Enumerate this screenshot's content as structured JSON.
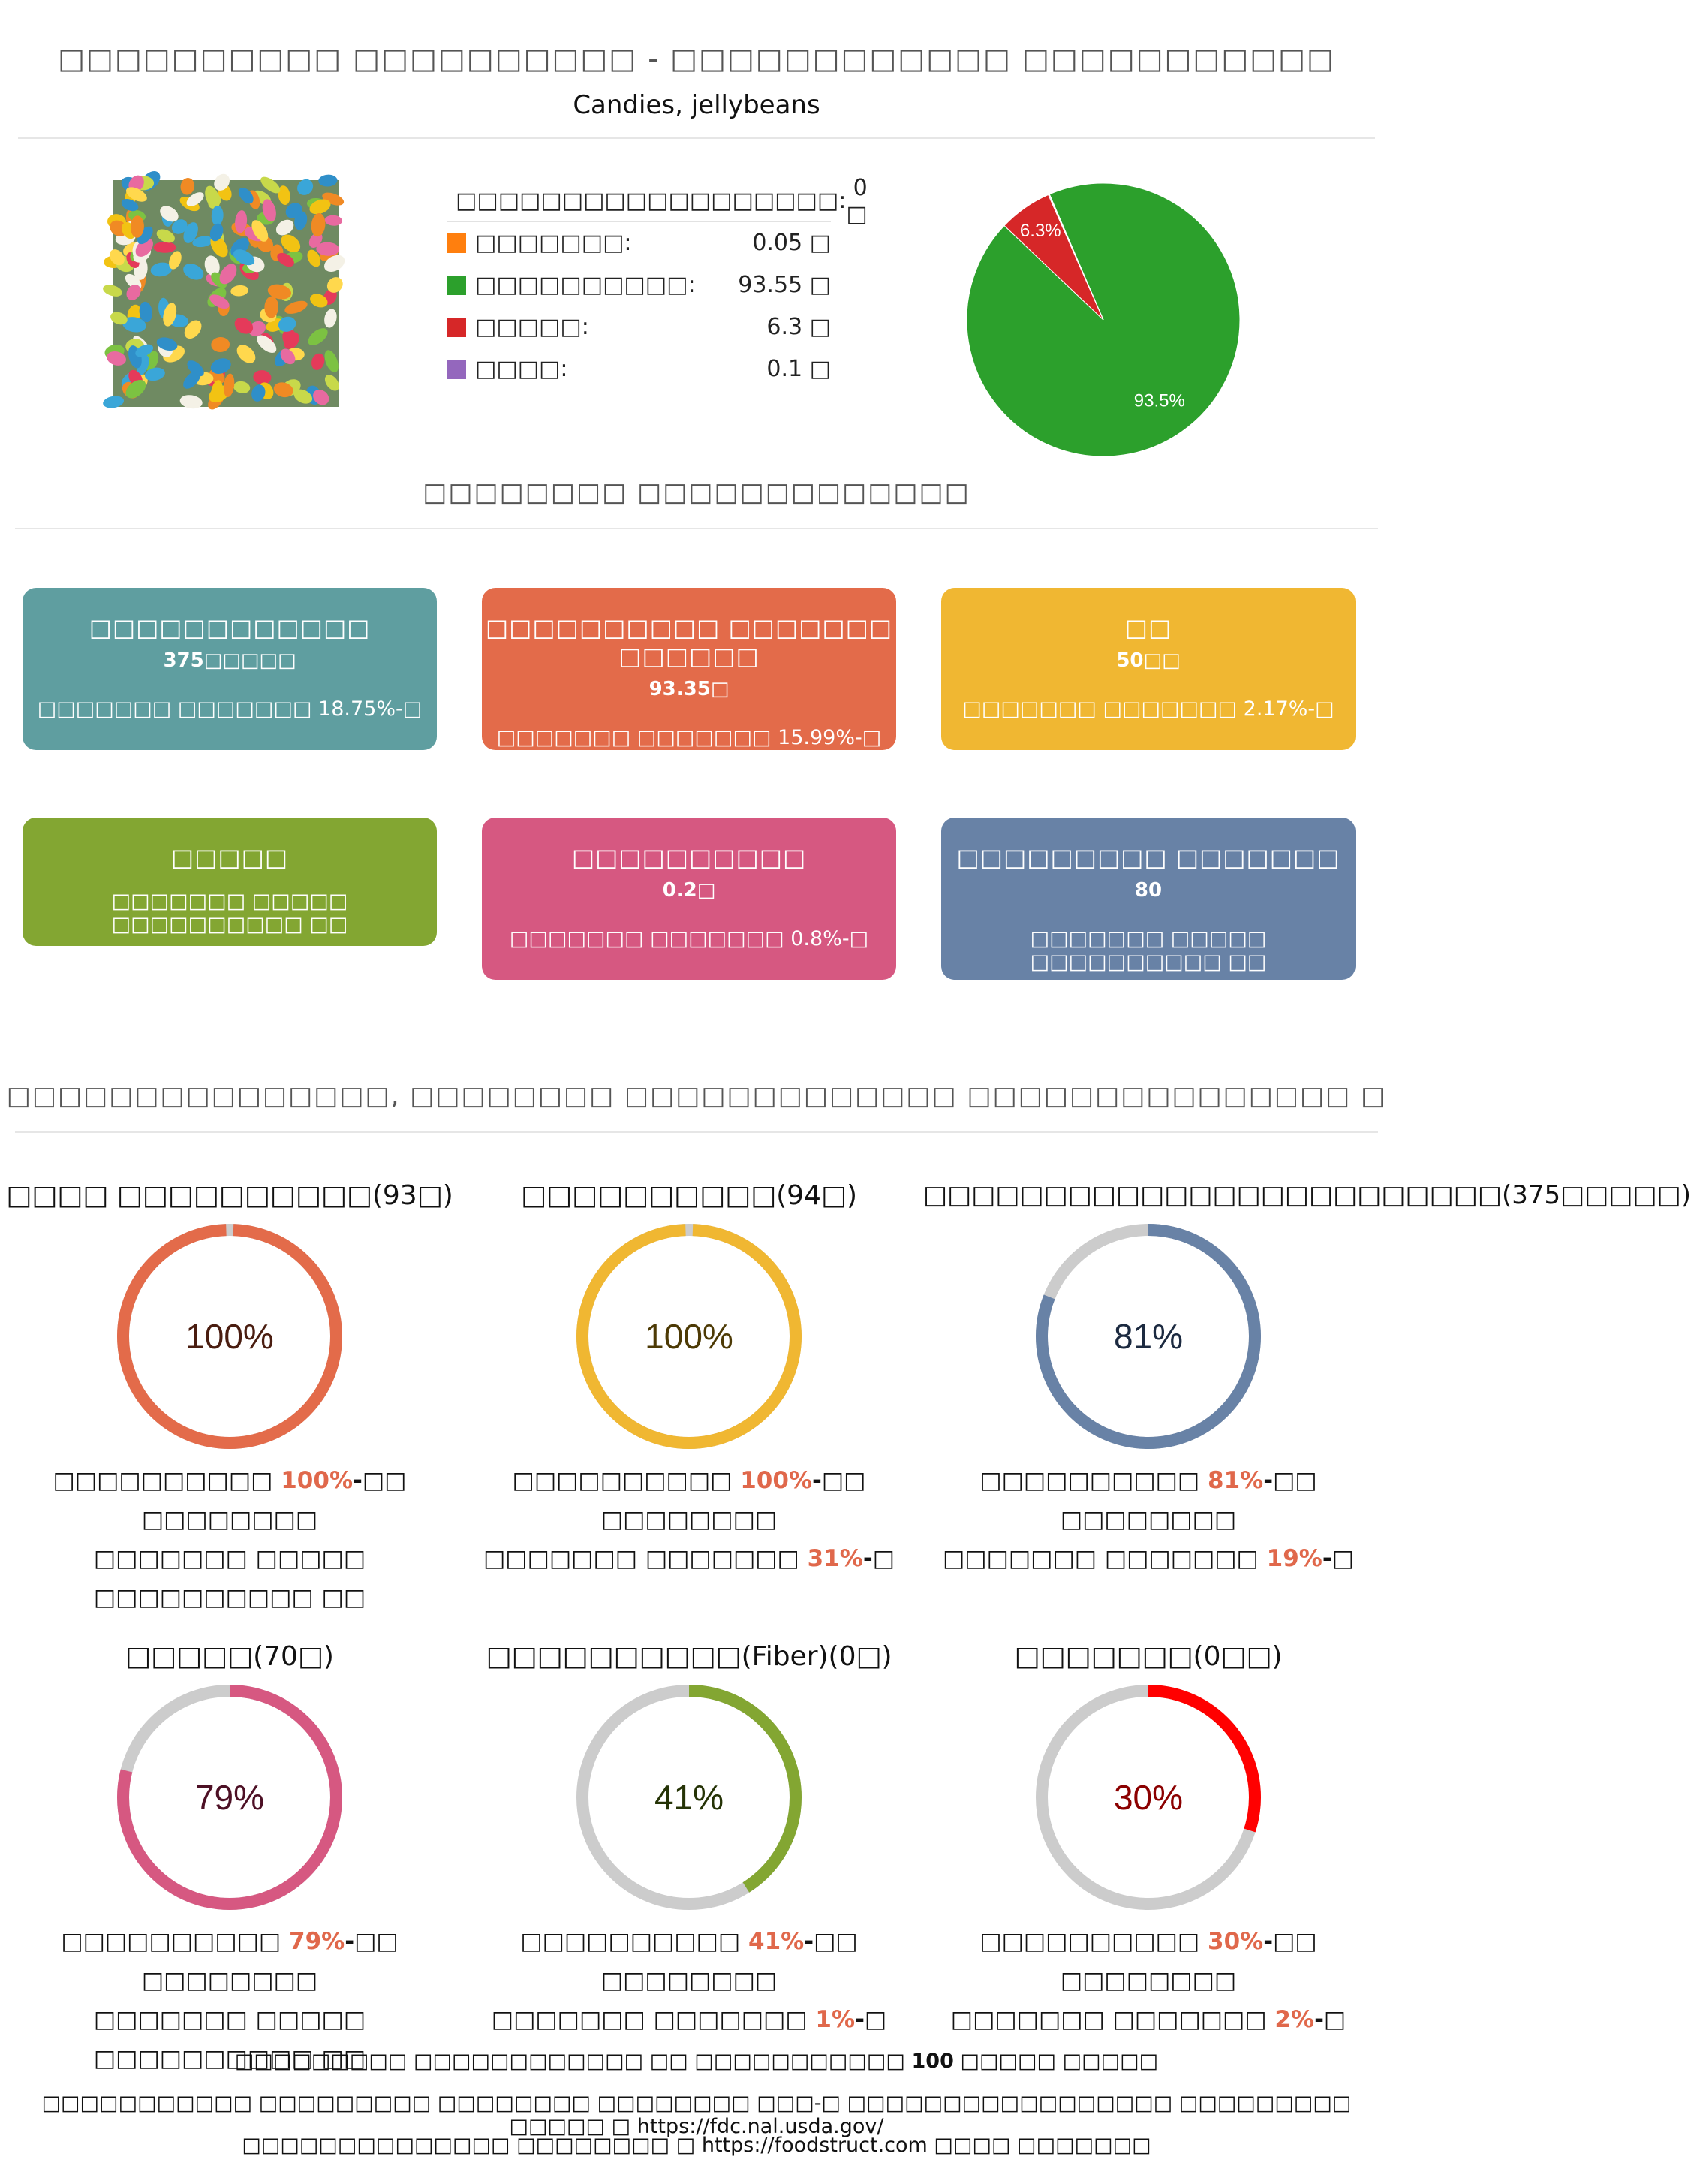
{
  "header": {
    "title": "□□□□□□□□□□ □□□□□□□□□□ - □□□□□□□□□□□□ □□□□□□□□□□□",
    "subtitle": "Candies, jellybeans"
  },
  "image": {
    "alt": "jellybeans-photo"
  },
  "legend": [
    {
      "label": "□□□□□□□□□□□□□□□□□□:",
      "value": "0 □",
      "color": "#1f77b4"
    },
    {
      "label": "□□□□□□□:",
      "value": "0.05 □",
      "color": "#ff7f0e"
    },
    {
      "label": "□□□□□□□□□□:",
      "value": "93.55 □",
      "color": "#2ca02c"
    },
    {
      "label": "□□□□□:",
      "value": "6.3 □",
      "color": "#d62728"
    },
    {
      "label": "□□□□:",
      "value": "0.1 □",
      "color": "#9467bd"
    }
  ],
  "chart_data": {
    "type": "pie",
    "slices": [
      {
        "label": "93.5%",
        "value": 93.55,
        "color": "#2ca02c"
      },
      {
        "label": "6.3%",
        "value": 6.3,
        "color": "#d62728"
      },
      {
        "label": "",
        "value": 0.1,
        "color": "#9467bd"
      },
      {
        "label": "",
        "value": 0.05,
        "color": "#ff7f0e"
      }
    ]
  },
  "sections": {
    "cards_title": "□□□□□□□□ □□□□□□□□□□□□□",
    "rings_title": "□□□□□□□□□□□□□□□, □□□□□□□□ □□□□□□□□□□□□□ □□□□□□□□□□□□□□□ □"
  },
  "cards": [
    {
      "name": "□□□□□□□□□□□□",
      "value": "375□□□□□",
      "note": "□□□□□□□ □□□□□□□ 18.75%-□",
      "color": "#5f9ea0"
    },
    {
      "name": "□□□□□□□□□□ □□□□□□□ □□□□□□",
      "value": "93.35□",
      "note": "□□□□□□□ □□□□□□□ 15.99%-□",
      "color": "#e36b4a"
    },
    {
      "name": "□□",
      "value": "50□□",
      "note": "□□□□□□□ □□□□□□□ 2.17%-□",
      "color": "#f0b732"
    },
    {
      "name": "□□□□□",
      "value": "",
      "note": "□□□□□□□ □□□□□ □□□□□□□□□□ □□",
      "color": "#83a632"
    },
    {
      "name": "□□□□□□□□□□",
      "value": "0.2□",
      "note": "□□□□□□□ □□□□□□□ 0.8%-□",
      "color": "#d65881"
    },
    {
      "name": "□□□□□□□□□ □□□□□□□",
      "value": "80",
      "note": "□□□□□□□ □□□□□ □□□□□□□□□□ □□",
      "color": "#6882a6"
    }
  ],
  "rings": [
    {
      "title": "□□□□ □□□□□□□□□□(93□)",
      "percent": 100,
      "label": "100%",
      "color": "#e36b4a",
      "text_color": "#4a1d10",
      "desc1_pre": "□□□□□□□□□□ ",
      "desc1_hl": "100%",
      "desc1_post": "-□□ □□□□□□□□",
      "desc2_pre": "□□□□□□□ □□□□□ □□□□□□□□□□ □□",
      "desc2_hl": "",
      "desc2_post": ""
    },
    {
      "title": "□□□□□□□□□□(94□)",
      "percent": 100,
      "label": "100%",
      "color": "#f0b732",
      "text_color": "#4d3a05",
      "desc1_pre": "□□□□□□□□□□ ",
      "desc1_hl": "100%",
      "desc1_post": "-□□ □□□□□□□□",
      "desc2_pre": "□□□□□□□ □□□□□□□ ",
      "desc2_hl": "31%",
      "desc2_post": "-□"
    },
    {
      "title": "□□□□□□□□□□□□□□□□□□□□□□□□(375□□□□□)",
      "percent": 81,
      "label": "81%",
      "color": "#6882a6",
      "text_color": "#1c2a40",
      "desc1_pre": "□□□□□□□□□□ ",
      "desc1_hl": "81%",
      "desc1_post": "-□□ □□□□□□□□",
      "desc2_pre": "□□□□□□□ □□□□□□□ ",
      "desc2_hl": "19%",
      "desc2_post": "-□"
    },
    {
      "title": "□□□□□(70□)",
      "percent": 79,
      "label": "79%",
      "color": "#d65881",
      "text_color": "#4d1025",
      "desc1_pre": "□□□□□□□□□□ ",
      "desc1_hl": "79%",
      "desc1_post": "-□□ □□□□□□□□",
      "desc2_pre": "□□□□□□□ □□□□□ □□□□□□□□□□ □□",
      "desc2_hl": "",
      "desc2_post": ""
    },
    {
      "title": "□□□□□□□□□□(Fiber)(0□)",
      "percent": 41,
      "label": "41%",
      "color": "#83a632",
      "text_color": "#253306",
      "desc1_pre": "□□□□□□□□□□ ",
      "desc1_hl": "41%",
      "desc1_post": "-□□ □□□□□□□□",
      "desc2_pre": "□□□□□□□ □□□□□□□ ",
      "desc2_hl": "1%",
      "desc2_post": "-□"
    },
    {
      "title": "□□□□□□□(0□□)",
      "percent": 30,
      "label": "30%",
      "color": "#ff0000",
      "text_color": "#8b0000",
      "desc1_pre": "□□□□□□□□□□ ",
      "desc1_hl": "30%",
      "desc1_post": "-□□ □□□□□□□□",
      "desc2_pre": "□□□□□□□ □□□□□□□ ",
      "desc2_hl": "2%",
      "desc2_post": "-□"
    }
  ],
  "footer": {
    "line1_pre": "□□□□□□□□□ □□□□□□□□□□□□ □□ □□□□□□□□□□□ ",
    "line1_bold": "100",
    "line1_post": " □□□□□ □□□□□",
    "line2": "□□□□□□□□□□□ □□□□□□□□□ □□□□□□□□ □□□□□□□□ □□□-□ □□□□□□□□□□□□□□□□□ □□□□□□□□□ □□□□□ □ https://fdc.nal.usda.gov/",
    "line3": "□□□□□□□□□□□□□□ □□□□□□□□ □ https://foodstruct.com □□□□ □□□□□□□"
  }
}
